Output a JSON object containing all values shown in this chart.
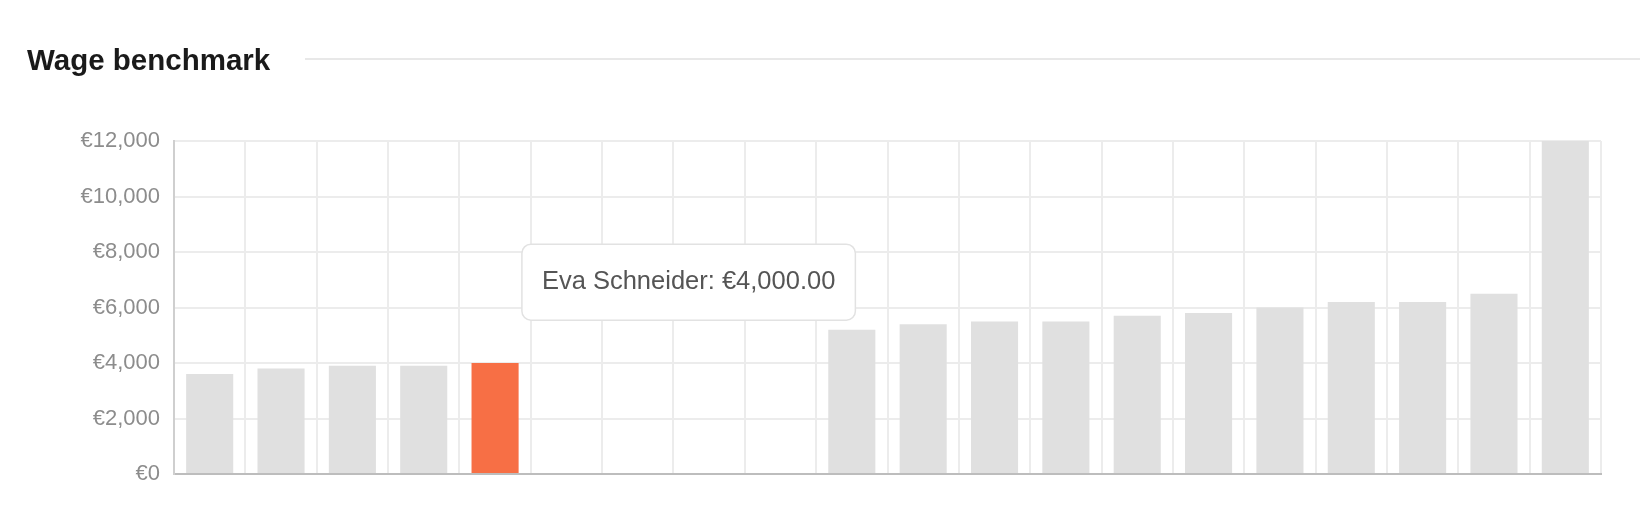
{
  "chart_data": {
    "type": "bar",
    "title": "Wage benchmark",
    "categories": [
      null,
      null,
      null,
      null,
      null,
      null,
      null,
      null,
      null,
      null,
      null,
      null,
      null,
      null,
      null,
      null,
      null,
      null,
      null,
      null
    ],
    "values": [
      3600,
      3800,
      3900,
      3900,
      4000,
      null,
      null,
      null,
      null,
      5200,
      5400,
      5500,
      5500,
      5700,
      5800,
      6000,
      6200,
      6200,
      6500,
      12000
    ],
    "colors": [
      "#e0e0e0",
      "#e0e0e0",
      "#e0e0e0",
      "#e0e0e0",
      "#f76f45",
      "#e0e0e0",
      "#e0e0e0",
      "#e0e0e0",
      "#e0e0e0",
      "#e0e0e0",
      "#e0e0e0",
      "#e0e0e0",
      "#e0e0e0",
      "#e0e0e0",
      "#e0e0e0",
      "#e0e0e0",
      "#e0e0e0",
      "#e0e0e0",
      "#e0e0e0",
      "#e0e0e0"
    ],
    "ylim": [
      0,
      12000
    ],
    "yticks": [
      {
        "value": 0,
        "label": "€0"
      },
      {
        "value": 2000,
        "label": "€2,000"
      },
      {
        "value": 4000,
        "label": "€4,000"
      },
      {
        "value": 6000,
        "label": "€6,000"
      },
      {
        "value": 8000,
        "label": "€8,000"
      },
      {
        "value": 10000,
        "label": "€10,000"
      },
      {
        "value": 12000,
        "label": "€12,000"
      }
    ],
    "grid": true,
    "tick_labels": "y",
    "annotations": [
      "Eva Schneider: €4,000.00"
    ]
  }
}
